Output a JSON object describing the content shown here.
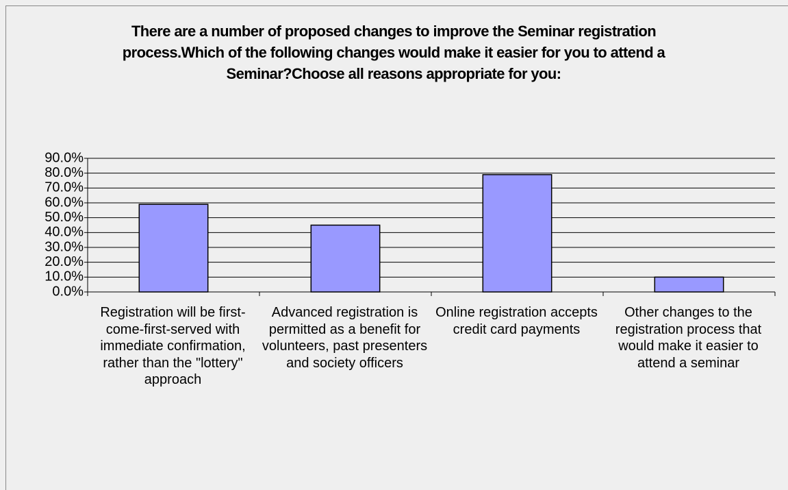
{
  "chart_data": {
    "type": "bar",
    "title": "There are a number of proposed changes to improve the Seminar registration process.Which of the following changes would make it easier for you to attend a Seminar?Choose all reasons appropriate for you:",
    "categories": [
      "Registration will be first-come-first-served with immediate confirmation, rather than the \"lottery\" approach",
      "Advanced registration is permitted as a benefit for volunteers, past presenters and society officers",
      "Online registration accepts credit card payments",
      "Other changes to the registration process that would make it easier to attend a seminar"
    ],
    "values": [
      59,
      45,
      79,
      10
    ],
    "color": "#9999ff",
    "ylim": [
      0,
      90
    ],
    "yticks": [
      {
        "value": 0,
        "label": "0.0%"
      },
      {
        "value": 10,
        "label": "10.0%"
      },
      {
        "value": 20,
        "label": "20.0%"
      },
      {
        "value": 30,
        "label": "30.0%"
      },
      {
        "value": 40,
        "label": "40.0%"
      },
      {
        "value": 50,
        "label": "50.0%"
      },
      {
        "value": 60,
        "label": "60.0%"
      },
      {
        "value": 70,
        "label": "70.0%"
      },
      {
        "value": 80,
        "label": "80.0%"
      },
      {
        "value": 90,
        "label": "90.0%"
      }
    ],
    "grid": true
  }
}
